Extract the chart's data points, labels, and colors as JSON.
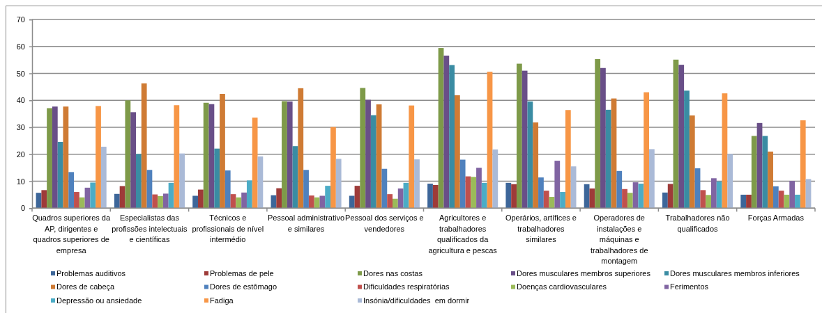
{
  "chart_data": {
    "type": "bar",
    "categories": [
      "Quadros superiores da AP, dirigentes e quadros superiores de empresa",
      "Especialistas das profissões intelectuais e científicas",
      "Técnicos e profissionais de nível intermédio",
      "Pessoal administrativo e similares",
      "Pessoal dos serviços e vendedores",
      "Agricultores e trabalhadores qualificados da agricultura e pescas",
      "Operários, artífices e trabalhadores similares",
      "Operadores de instalações e máquinas e trabalhadores de montagem",
      "Trabalhadores não qualificados",
      "Forças Armadas"
    ],
    "series": [
      {
        "name": "Problemas auditivos",
        "color": "#3d6699",
        "values": [
          5.7,
          5.3,
          4.6,
          4.8,
          4.6,
          9.1,
          9.4,
          8.9,
          5.8,
          5.0
        ]
      },
      {
        "name": "Problemas de pele",
        "color": "#9e3b39",
        "values": [
          6.7,
          8.2,
          6.9,
          7.4,
          8.3,
          8.6,
          8.9,
          7.3,
          9.0,
          5.0
        ]
      },
      {
        "name": "Dores nas costas",
        "color": "#7e9a49",
        "values": [
          37.1,
          40.0,
          39.1,
          39.7,
          44.6,
          59.4,
          53.6,
          55.3,
          55.1,
          26.8
        ]
      },
      {
        "name": "Dores musculares membros superiores",
        "color": "#694f88",
        "values": [
          37.7,
          35.6,
          38.6,
          39.6,
          40.2,
          56.6,
          51.0,
          52.0,
          53.2,
          31.6
        ]
      },
      {
        "name": "Dores musculares membros inferiores",
        "color": "#3a8ca3",
        "values": [
          24.6,
          20.1,
          22.1,
          23.0,
          34.5,
          53.1,
          39.6,
          36.5,
          43.6,
          26.8
        ]
      },
      {
        "name": "Dores de cabeça",
        "color": "#cf7b34",
        "values": [
          37.7,
          46.3,
          42.4,
          44.5,
          38.5,
          41.9,
          31.8,
          40.7,
          34.4,
          21.0
        ]
      },
      {
        "name": "Dores de estômago",
        "color": "#4f81bd",
        "values": [
          13.4,
          14.2,
          14.0,
          14.2,
          14.6,
          18.0,
          11.4,
          13.8,
          14.8,
          8.1
        ]
      },
      {
        "name": "Dificuldades respiratórias",
        "color": "#c0504d",
        "values": [
          6.0,
          5.1,
          5.2,
          4.7,
          5.2,
          11.8,
          6.5,
          7.1,
          6.7,
          6.5
        ]
      },
      {
        "name": "Doenças cardiovasculares",
        "color": "#9bbb59",
        "values": [
          4.0,
          4.5,
          4.0,
          4.0,
          3.5,
          11.6,
          4.2,
          5.7,
          4.9,
          5.0
        ]
      },
      {
        "name": "Ferimentos",
        "color": "#8064a2",
        "values": [
          7.6,
          5.4,
          5.8,
          4.6,
          7.3,
          15.0,
          17.6,
          9.6,
          11.1,
          10.1
        ]
      },
      {
        "name": "Depressão ou ansiedade",
        "color": "#4bacc6",
        "values": [
          9.5,
          9.4,
          10.3,
          8.3,
          9.4,
          9.4,
          6.0,
          9.1,
          9.9,
          5.0
        ]
      },
      {
        "name": "Fadiga",
        "color": "#f79646",
        "values": [
          37.9,
          38.2,
          33.6,
          30.1,
          38.1,
          50.6,
          36.4,
          43.0,
          42.6,
          32.6
        ]
      },
      {
        "name": "Insónia/dificuldades  em dormir",
        "color": "#aabad7",
        "values": [
          22.8,
          20.3,
          19.2,
          18.3,
          18.1,
          21.8,
          15.5,
          21.9,
          20.1,
          10.8
        ]
      }
    ],
    "ylim": [
      0,
      70
    ],
    "yticks": [
      0,
      10,
      20,
      30,
      40,
      50,
      60,
      70
    ],
    "grid": "y",
    "legend": "bottom"
  }
}
